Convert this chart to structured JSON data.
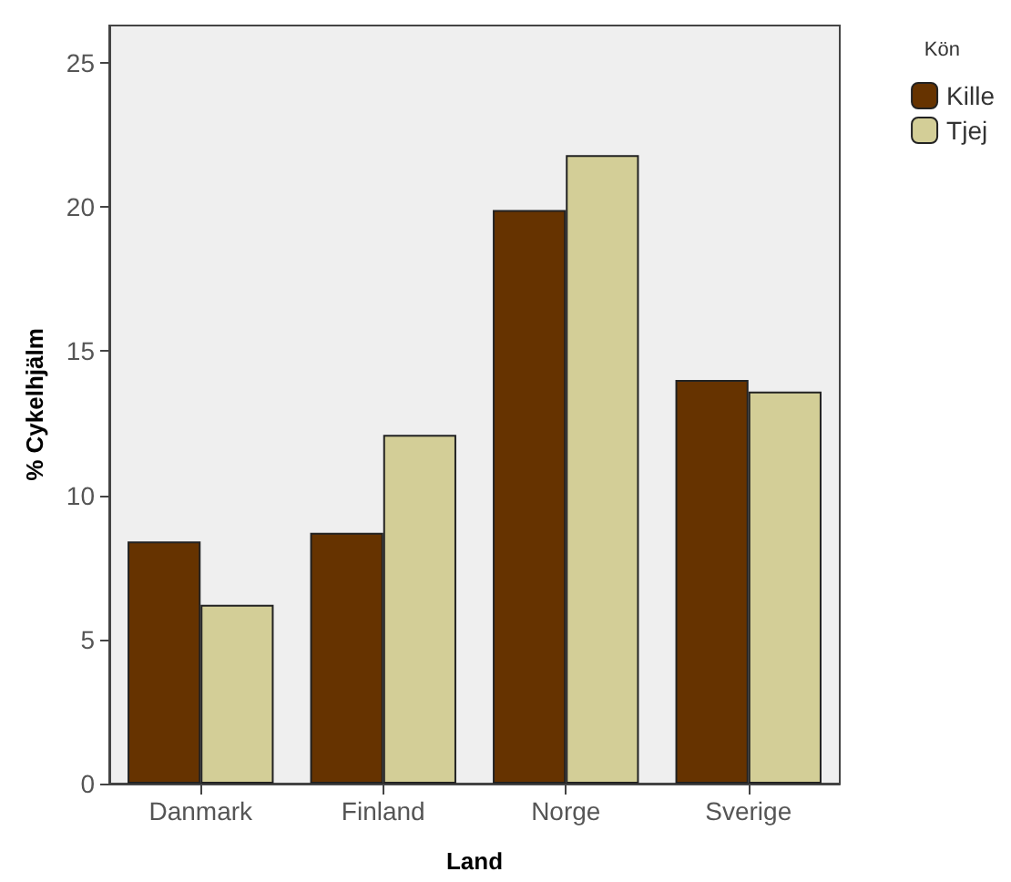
{
  "chart_data": {
    "type": "bar",
    "xlabel": "Land",
    "ylabel": "% Cykelhjälm",
    "legend_title": "Kön",
    "categories": [
      "Danmark",
      "Finland",
      "Norge",
      "Sverige"
    ],
    "series": [
      {
        "name": "Kille",
        "color": "#663300",
        "values": [
          8.4,
          8.7,
          19.9,
          14.0
        ]
      },
      {
        "name": "Tjej",
        "color": "#d3ce97",
        "values": [
          6.2,
          12.1,
          21.8,
          13.6
        ]
      }
    ],
    "ylim": [
      0,
      26.3
    ],
    "yticks": [
      0,
      5,
      10,
      15,
      20,
      25
    ],
    "grid": false,
    "legend": "top right"
  }
}
